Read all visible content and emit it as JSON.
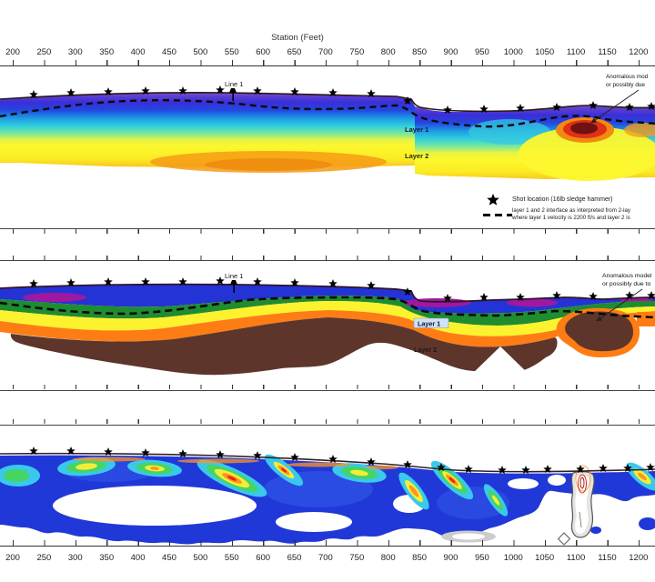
{
  "figure": {
    "axis": {
      "title": "Station (Feet)",
      "tick_labels": [
        "200",
        "250",
        "300",
        "350",
        "400",
        "450",
        "500",
        "550",
        "600",
        "650",
        "700",
        "750",
        "800",
        "850",
        "900",
        "950",
        "1000",
        "1050",
        "1100",
        "1150",
        "1200"
      ]
    },
    "legend": {
      "shot_label": "Shot location (16lb sledge hammer)",
      "interface_label_line1": "layer 1 and 2 interface as interpreted from 2-lay",
      "interface_label_line2": "where layer 1 velocity is 2200 ft/s and layer 2 is"
    },
    "panel1": {
      "line_label": "Line 1",
      "layer1_label": "Layer 1",
      "layer2_label": "Layer 2",
      "annotation_line1": "Anomalous mod",
      "annotation_line2": "or possibly due"
    },
    "panel2": {
      "line_label": "Line 1",
      "layer1_label": "Layer 1",
      "layer2_label": "Layer 2",
      "annotation_line1": "Anomalous model",
      "annotation_line2": "or possibly due to"
    },
    "colors": {
      "tomogram_purple": "#8a5fd4",
      "tomogram_blue": "#2a2ad8",
      "tomogram_cyan": "#2fd0dc",
      "tomogram_yellow": "#fcf72e",
      "tomogram_orange": "#f69c14",
      "anomaly_dark_red": "#6e1212",
      "model_blue": "#2433d6",
      "model_magenta": "#a018a0",
      "model_green": "#1f8c30",
      "model_yellow": "#fdf22e",
      "model_orange": "#fd7d14",
      "model_brown": "#5e352b",
      "ray_blue": "#2138d8",
      "ray_red": "#e42318"
    }
  },
  "chart_data": {
    "type": "heatmap",
    "title": "Station (Feet)",
    "x_axis": {
      "label": "Station (Feet)",
      "min": 200,
      "max": 1200,
      "tick_interval": 50,
      "tick_labels": [
        "200",
        "250",
        "300",
        "350",
        "400",
        "450",
        "500",
        "550",
        "600",
        "650",
        "700",
        "750",
        "800",
        "850",
        "900",
        "950",
        "1000",
        "1050",
        "1100",
        "1150",
        "1200"
      ]
    },
    "panels": [
      {
        "index": 1,
        "content": "smooth seismic velocity tomogram cross-section",
        "color_order_top_to_bottom": [
          "purple",
          "blue-violet",
          "blue",
          "cyan",
          "green-yellow",
          "yellow",
          "orange"
        ],
        "features": [
          "shot-location stars along ground surface",
          "dashed layer 1 / layer 2 interface",
          "dark-red velocity anomaly near station 1100",
          "Line 1 tie marker near station 550",
          "labels Layer 1 and Layer 2"
        ]
      },
      {
        "index": 2,
        "content": "contoured layered velocity model cross-section",
        "color_order_top_to_bottom": [
          "blue",
          "magenta patches",
          "green",
          "yellow",
          "orange",
          "dark brown"
        ],
        "features": [
          "shot-location stars along ground surface",
          "dashed layer 1 / layer 2 interface",
          "anomalous dark-brown body wrapped in orange near station 1100",
          "Line 1 tie marker near station 550",
          "labels Layer 1 (boxed) and Layer 2"
        ]
      },
      {
        "index": 3,
        "content": "ray-coverage / contour section",
        "features": [
          "blue background body with white holes",
          "concentric cyan-green-yellow-orange-red contour clusters",
          "grey vertical low-coverage feature near station 1100",
          "white diamond marker near station 1070",
          "shot-location stars along ground surface"
        ]
      }
    ],
    "legend": [
      {
        "symbol": "star",
        "label": "Shot location (16lb sledge hammer)"
      },
      {
        "symbol": "dashed-line",
        "label": "layer 1 and 2 interface as interpreted from 2-lay / where layer 1 velocity is 2200 ft/s and layer 2 is"
      }
    ],
    "annotations": [
      "Anomalous mod / or possibly due (panel 1, arrow to anomaly near station 1100)",
      "Anomalous model / or possibly due to (panel 2, arrow to brown body near station 1100)",
      "Line 1 (panels 1 and 2, near station 550)",
      "Layer 1",
      "Layer 2"
    ]
  }
}
